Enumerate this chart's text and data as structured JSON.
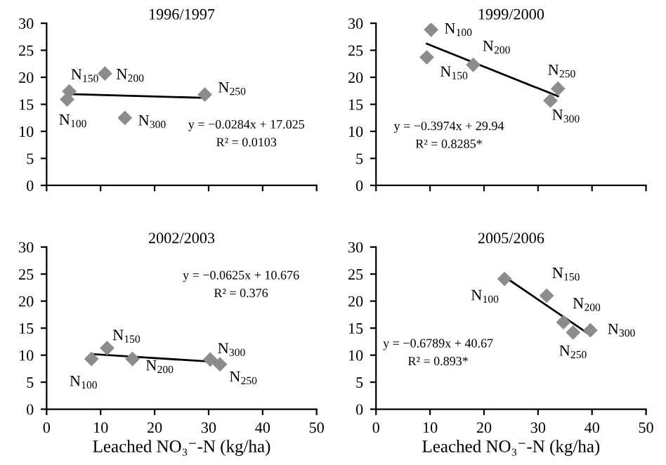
{
  "chart_data": [
    {
      "type": "scatter",
      "title": "1996/1997",
      "xlim": [
        0,
        50
      ],
      "ylim": [
        0,
        30
      ],
      "xticks": [
        0,
        10,
        20,
        30,
        40,
        50
      ],
      "yticks": [
        0,
        5,
        10,
        15,
        20,
        25,
        30
      ],
      "grid": false,
      "legend": false,
      "tick_labels": "y",
      "series": [
        {
          "color": "#8c8c8c",
          "marker": "diamond",
          "x": [
            3.8,
            4.2,
            10.8,
            29.3,
            14.5
          ],
          "values": [
            15.9,
            17.4,
            20.7,
            16.8,
            12.5
          ]
        },
        {
          "type": "line",
          "color": "#000000",
          "marker": "none",
          "line_style": "solid",
          "x": [
            4,
            29.3
          ],
          "values": [
            16.9,
            16.2
          ]
        }
      ],
      "annotations": [
        {
          "text": "N$_{100}$",
          "x": 3.8,
          "y": 15.9
        },
        {
          "text": "N$_{150}$",
          "x": 4.2,
          "y": 17.4
        },
        {
          "text": "N$_{200}$",
          "x": 10.8,
          "y": 20.7
        },
        {
          "text": "N$_{250}$",
          "x": 29.3,
          "y": 16.8
        },
        {
          "text": "N$_{300}$",
          "x": 14.5,
          "y": 12.5
        },
        "y = −0.0284x + 17.025",
        "R² = 0.0103"
      ]
    },
    {
      "type": "scatter",
      "title": "1999/2000",
      "xlim": [
        0,
        50
      ],
      "ylim": [
        0,
        30
      ],
      "xticks": [
        0,
        10,
        20,
        30,
        40,
        50
      ],
      "yticks": [
        0,
        5,
        10,
        15,
        20,
        25,
        30
      ],
      "grid": false,
      "legend": false,
      "tick_labels": "y",
      "series": [
        {
          "color": "#8c8c8c",
          "marker": "diamond",
          "x": [
            10.2,
            9.4,
            18,
            33.7,
            32.3
          ],
          "values": [
            28.8,
            23.7,
            22.3,
            17.9,
            15.7
          ]
        },
        {
          "type": "line",
          "color": "#000000",
          "marker": "none",
          "line_style": "solid",
          "x": [
            9.4,
            33.7
          ],
          "values": [
            26.2,
            16.5
          ]
        }
      ],
      "annotations": [
        {
          "text": "N$_{100}$",
          "x": 10.2,
          "y": 28.8
        },
        {
          "text": "N$_{150}$",
          "x": 9.4,
          "y": 23.7
        },
        {
          "text": "N$_{200}$",
          "x": 18,
          "y": 22.3
        },
        {
          "text": "N$_{250}$",
          "x": 33.7,
          "y": 17.9
        },
        {
          "text": "N$_{300}$",
          "x": 32.3,
          "y": 15.7
        },
        "y = −0.3974x + 29.94",
        "R² = 0.8285*"
      ]
    },
    {
      "type": "scatter",
      "title": "2002/2003",
      "xlabel": "Leached NO₃⁻-N (kg/ha)",
      "xlim": [
        0,
        50
      ],
      "ylim": [
        0,
        30
      ],
      "xticks": [
        0,
        10,
        20,
        30,
        40,
        50
      ],
      "yticks": [
        0,
        5,
        10,
        15,
        20,
        25,
        30
      ],
      "grid": false,
      "legend": false,
      "series": [
        {
          "color": "#8c8c8c",
          "marker": "diamond",
          "x": [
            8.3,
            11.2,
            15.9,
            32.1,
            30.3
          ],
          "values": [
            9.3,
            11.3,
            9.3,
            8.3,
            9.2
          ]
        },
        {
          "type": "line",
          "color": "#000000",
          "marker": "none",
          "line_style": "solid",
          "x": [
            8.3,
            32.1
          ],
          "values": [
            10.2,
            8.7
          ]
        }
      ],
      "annotations": [
        {
          "text": "N$_{100}$",
          "x": 8.3,
          "y": 9.3
        },
        {
          "text": "N$_{150}$",
          "x": 11.2,
          "y": 11.3
        },
        {
          "text": "N$_{200}$",
          "x": 15.9,
          "y": 9.3
        },
        {
          "text": "N$_{250}$",
          "x": 32.1,
          "y": 8.3
        },
        {
          "text": "N$_{300}$",
          "x": 30.3,
          "y": 9.2
        },
        "y = −0.0625x + 10.676",
        "R² = 0.376"
      ]
    },
    {
      "type": "scatter",
      "title": "2005/2006",
      "xlabel": "Leached NO₃⁻-N (kg/ha)",
      "xlim": [
        0,
        50
      ],
      "ylim": [
        0,
        30
      ],
      "xticks": [
        0,
        10,
        20,
        30,
        40,
        50
      ],
      "yticks": [
        0,
        5,
        10,
        15,
        20,
        25,
        30
      ],
      "grid": false,
      "legend": false,
      "series": [
        {
          "color": "#8c8c8c",
          "marker": "diamond",
          "x": [
            23.8,
            31.6,
            34.7,
            36.5,
            39.7
          ],
          "values": [
            24.1,
            21,
            16.1,
            14.2,
            14.6
          ]
        },
        {
          "type": "line",
          "color": "#000000",
          "marker": "none",
          "line_style": "solid",
          "x": [
            23.8,
            39.7
          ],
          "values": [
            24.5,
            13.7
          ]
        }
      ],
      "annotations": [
        {
          "text": "N$_{100}$",
          "x": 23.8,
          "y": 24.1
        },
        {
          "text": "N$_{150}$",
          "x": 31.6,
          "y": 21
        },
        {
          "text": "N$_{200}$",
          "x": 34.7,
          "y": 16.1
        },
        {
          "text": "N$_{250}$",
          "x": 36.5,
          "y": 14.2
        },
        {
          "text": "N$_{300}$",
          "x": 39.7,
          "y": 14.6
        },
        "y = −0.6789x + 40.67",
        "R² = 0.893*"
      ]
    }
  ]
}
